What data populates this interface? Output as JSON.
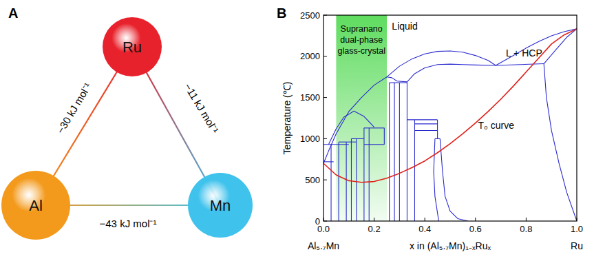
{
  "panel_labels": [
    "A",
    "B"
  ],
  "panel_a": {
    "nodes": [
      {
        "label": "Ru",
        "color": "#e8222c"
      },
      {
        "label": "Al",
        "color": "#f39a1c"
      },
      {
        "label": "Mn",
        "color": "#3fc2ec"
      }
    ],
    "edges": [
      {
        "from": 0,
        "to": 1,
        "label": "−30 kJ mol⁻¹"
      },
      {
        "from": 0,
        "to": 2,
        "label": "−11 kJ mol⁻¹"
      },
      {
        "from": 1,
        "to": 2,
        "label": "−43 kJ mol⁻¹"
      }
    ]
  },
  "chart_data": {
    "type": "line",
    "xlabel": "x in (Al₅.₇Mn)₁₋ₓRuₓ",
    "ylabel": "Temperature (℃)",
    "x_end_labels": [
      "Al₅.₇Mn",
      "Ru"
    ],
    "xlim": [
      0,
      1
    ],
    "ylim": [
      0,
      2500
    ],
    "xticks": [
      {
        "value": 0,
        "label": "0.0"
      },
      0.2,
      0.4,
      0.6,
      0.8,
      {
        "value": 1,
        "label": "1.0"
      }
    ],
    "yticks": [
      0,
      500,
      1000,
      1500,
      2000,
      2500
    ],
    "grid": false,
    "annotations": [
      {
        "text": "Liquid"
      },
      {
        "text": "L + HCP"
      }
    ],
    "shaded_region": {
      "x": [
        0.05,
        0.25
      ],
      "label": [
        "Supranano",
        "dual-phase",
        "glass-crystal"
      ],
      "color": "#5fdc5f"
    },
    "series": [
      {
        "color": "#2a2acf",
        "x": [
          0,
          0.02,
          0.05,
          0.1,
          0.15,
          0.2,
          0.25
        ],
        "values": [
          700,
          850,
          1060,
          1330,
          1500,
          1650,
          1750
        ]
      },
      {
        "color": "#2a2acf",
        "x": [
          0.02,
          0.05,
          0.08,
          0.12,
          0.16,
          0.2
        ],
        "values": [
          930,
          1120,
          1260,
          1335,
          1270,
          1140
        ]
      },
      {
        "color": "#2a2acf",
        "x": [
          0.25,
          0.27,
          0.29,
          0.33
        ],
        "values": [
          1750,
          1740,
          1700,
          1690
        ]
      },
      {
        "color": "#2a2acf",
        "x": [
          0.25,
          0.3,
          0.35,
          0.4,
          0.45,
          0.5,
          0.55,
          0.6,
          0.65,
          0.68
        ],
        "values": [
          1750,
          1880,
          1970,
          2030,
          2060,
          2065,
          2050,
          2010,
          1950,
          1890
        ]
      },
      {
        "color": "#2a2acf",
        "x": [
          0.68,
          0.75,
          0.8,
          0.85,
          0.9,
          0.95,
          1.0
        ],
        "values": [
          1890,
          2010,
          2100,
          2180,
          2250,
          2300,
          2334
        ]
      },
      {
        "color": "#2a2acf",
        "x": [
          0.87,
          0.92,
          0.96,
          1.0
        ],
        "values": [
          1910,
          2090,
          2230,
          2334
        ]
      },
      {
        "color": "#2a2acf",
        "x": [
          0.68,
          0.87
        ],
        "values": [
          1890,
          1910
        ]
      },
      {
        "color": "#2a2acf",
        "x": [
          0.33,
          0.36,
          0.4,
          0.45,
          0.5,
          0.55,
          0.6,
          0.68
        ],
        "values": [
          1690,
          1790,
          1860,
          1900,
          1905,
          1900,
          1895,
          1890
        ]
      },
      {
        "color": "#2a2acf",
        "x": [
          0.87,
          0.88,
          0.9,
          0.93,
          0.96,
          1.0
        ],
        "values": [
          1910,
          1500,
          1100,
          700,
          350,
          0
        ]
      },
      {
        "color": "#2a2acf",
        "x": [
          0.46,
          0.47,
          0.48,
          0.5,
          0.53,
          0.57
        ],
        "values": [
          1000,
          600,
          300,
          120,
          30,
          0
        ]
      },
      {
        "color": "#2a2acf",
        "x": [
          0.44,
          0.435,
          0.44,
          0.455
        ],
        "values": [
          1000,
          600,
          300,
          0
        ]
      },
      {
        "color": "#2a2acf",
        "x": [
          0.44,
          0.46
        ],
        "values": [
          1000,
          1000
        ]
      },
      {
        "color": "#2a2acf",
        "x": [
          0.33,
          0.45
        ],
        "values": [
          1230,
          1230
        ]
      },
      {
        "color": "#2a2acf",
        "x": [
          0.36,
          0.45
        ],
        "values": [
          1180,
          1180
        ]
      },
      {
        "color": "#2a2acf",
        "x": [
          0.36,
          0.45
        ],
        "values": [
          1100,
          1100
        ]
      },
      {
        "color": "#2a2acf",
        "x": [
          0,
          0.1
        ],
        "values": [
          930,
          930
        ]
      },
      {
        "color": "#2a2acf",
        "x": [
          0,
          0.04
        ],
        "values": [
          720,
          720
        ]
      },
      {
        "color": "#2a2acf",
        "x": [
          0.06,
          0.13
        ],
        "values": [
          960,
          960
        ]
      },
      {
        "color": "#2a2acf",
        "x": [
          0.11,
          0.16
        ],
        "values": [
          1000,
          1000
        ]
      },
      {
        "color": "#2a2acf",
        "x": [
          0.16,
          0.24
        ],
        "values": [
          1130,
          1130
        ]
      },
      {
        "color": "#2a2acf",
        "x": [
          0.16,
          0.24
        ],
        "values": [
          930,
          930
        ]
      },
      {
        "color": "#2a2acf",
        "x": [
          0.24,
          0.24
        ],
        "values": [
          930,
          1130
        ]
      },
      {
        "color": "#2a2acf",
        "x": [
          0.26,
          0.33
        ],
        "values": [
          1680,
          1680
        ]
      },
      {
        "color": "#2a2acf",
        "x": [
          0.03,
          0.03
        ],
        "values": [
          0,
          930
        ]
      },
      {
        "color": "#2a2acf",
        "x": [
          0.06,
          0.06
        ],
        "values": [
          0,
          960
        ]
      },
      {
        "color": "#2a2acf",
        "x": [
          0.09,
          0.09
        ],
        "values": [
          0,
          960
        ]
      },
      {
        "color": "#2a2acf",
        "x": [
          0.11,
          0.11
        ],
        "values": [
          0,
          1000
        ]
      },
      {
        "color": "#2a2acf",
        "x": [
          0.13,
          0.13
        ],
        "values": [
          0,
          1000
        ]
      },
      {
        "color": "#2a2acf",
        "x": [
          0.16,
          0.16
        ],
        "values": [
          0,
          1130
        ]
      },
      {
        "color": "#2a2acf",
        "x": [
          0.18,
          0.18
        ],
        "values": [
          0,
          1130
        ]
      },
      {
        "color": "#2a2acf",
        "x": [
          0.26,
          0.26
        ],
        "values": [
          0,
          1680
        ]
      },
      {
        "color": "#2a2acf",
        "x": [
          0.28,
          0.28
        ],
        "values": [
          0,
          1680
        ]
      },
      {
        "color": "#2a2acf",
        "x": [
          0.3,
          0.3
        ],
        "values": [
          0,
          1680
        ]
      },
      {
        "color": "#2a2acf",
        "x": [
          0.33,
          0.33
        ],
        "values": [
          0,
          1690
        ]
      },
      {
        "color": "#2a2acf",
        "x": [
          0.36,
          0.36
        ],
        "values": [
          0,
          1230
        ]
      },
      {
        "color": "#2a2acf",
        "x": [
          0.45,
          0.45
        ],
        "values": [
          1000,
          1230
        ]
      },
      {
        "name": "T₀ curve",
        "color": "#e0201b",
        "x": [
          0,
          0.05,
          0.1,
          0.15,
          0.2,
          0.25,
          0.3,
          0.35,
          0.4,
          0.45,
          0.5,
          0.55,
          0.6,
          0.65,
          0.7,
          0.75,
          0.8,
          0.85,
          0.9,
          0.95,
          1.0
        ],
        "values": [
          700,
          560,
          490,
          470,
          480,
          520,
          580,
          650,
          730,
          830,
          940,
          1060,
          1190,
          1330,
          1480,
          1640,
          1810,
          1980,
          2150,
          2260,
          2334
        ]
      }
    ]
  }
}
